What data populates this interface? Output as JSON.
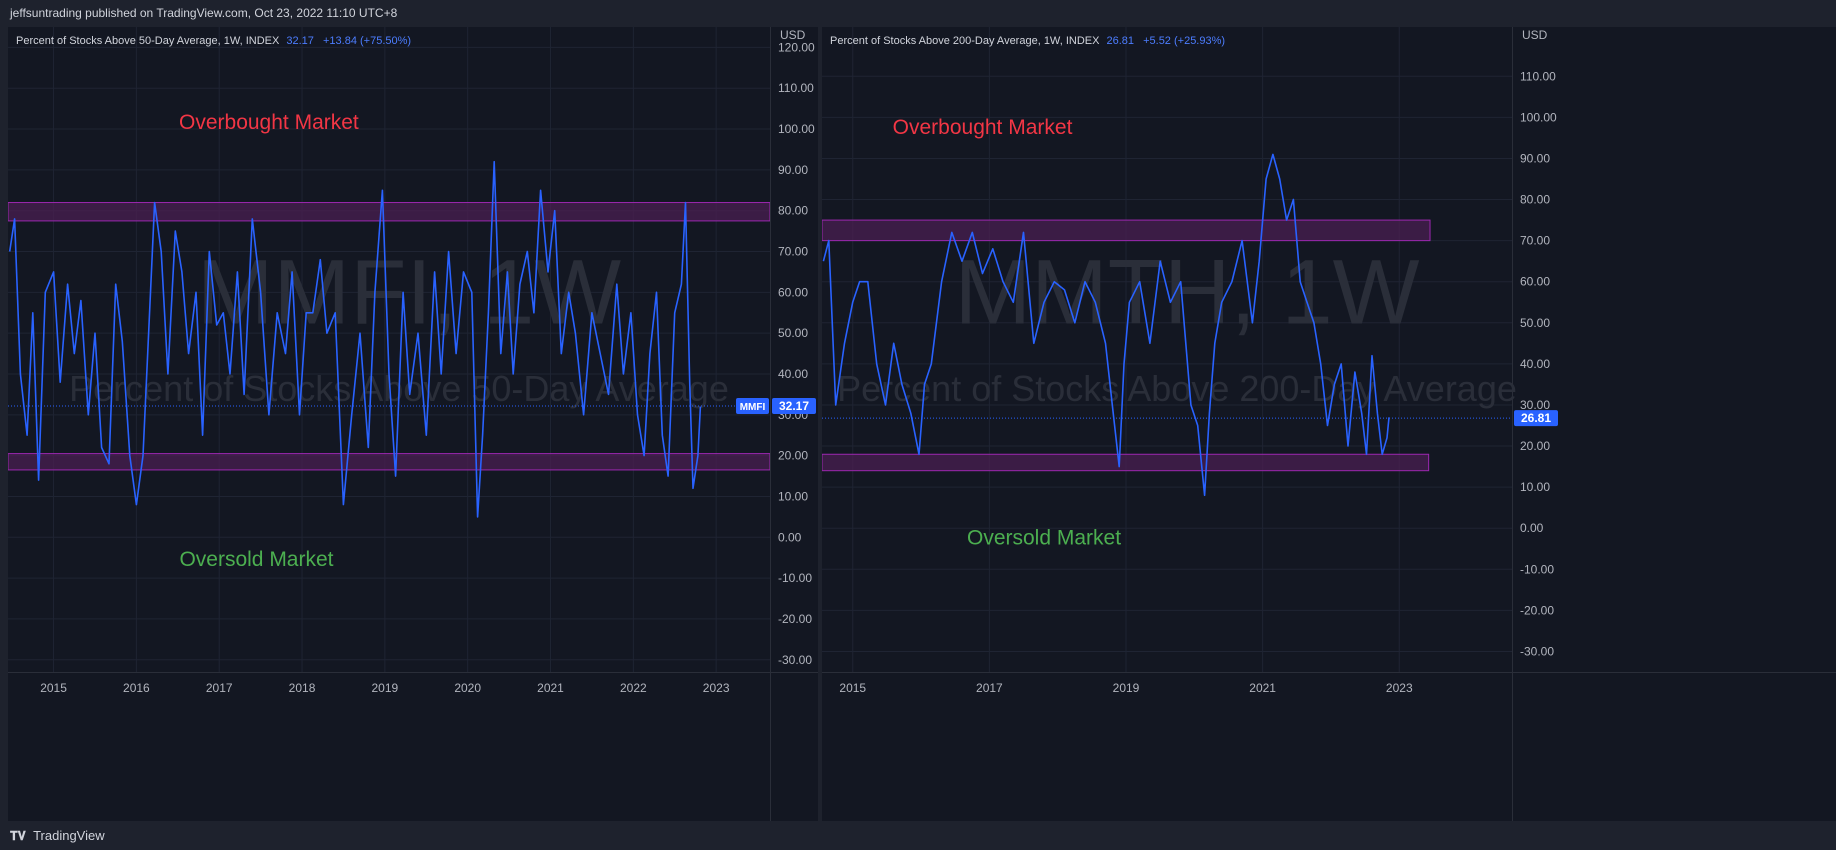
{
  "header": {
    "publisher": "jeffsuntrading published on TradingView.com, Oct 23, 2022 11:10 UTC+8"
  },
  "footer": {
    "brand": "TradingView"
  },
  "colors": {
    "line": "#2962ff",
    "zone_fill": "#4a1f52",
    "zone_border": "#9c27b0",
    "overbought": "#f23645",
    "oversold": "#4caf50",
    "price_tag": "#2962ff"
  },
  "chart_data": [
    {
      "type": "line",
      "title": "Percent of Stocks Above 50-Day Average, 1W, INDEX",
      "last_value": "32.17",
      "change": "+13.84 (+75.50%)",
      "symbol_tag": "MMFI",
      "currency": "USD",
      "watermark_symbol": "MMFI, 1W",
      "watermark_name": "Percent of Stocks Above 50-Day Average",
      "ylim": [
        -33,
        125
      ],
      "y_ticks": [
        "120.00",
        "110.00",
        "100.00",
        "90.00",
        "80.00",
        "70.00",
        "60.00",
        "50.00",
        "40.00",
        "30.00",
        "20.00",
        "10.00",
        "0.00",
        "-10.00",
        "-20.00",
        "-30.00"
      ],
      "x_ticks": [
        "2015",
        "2016",
        "2017",
        "2018",
        "2019",
        "2020",
        "2021",
        "2022",
        "2023"
      ],
      "xlim": [
        2014.45,
        2023.65
      ],
      "annotations": [
        {
          "text": "Overbought Market",
          "x": 2017.6,
          "y": 100
        },
        {
          "text": "Oversold Market",
          "x": 2017.45,
          "y": -7
        }
      ],
      "zones": [
        {
          "name": "overbought",
          "y_bottom": 77.5,
          "y_top": 82
        },
        {
          "name": "oversold",
          "y_bottom": 16.5,
          "y_top": 20.5
        }
      ],
      "x": [
        2014.47,
        2014.53,
        2014.6,
        2014.68,
        2014.75,
        2014.82,
        2014.9,
        2015.0,
        2015.08,
        2015.17,
        2015.25,
        2015.33,
        2015.42,
        2015.5,
        2015.58,
        2015.67,
        2015.75,
        2015.83,
        2015.92,
        2016.0,
        2016.08,
        2016.17,
        2016.22,
        2016.3,
        2016.38,
        2016.47,
        2016.55,
        2016.63,
        2016.72,
        2016.8,
        2016.88,
        2016.97,
        2017.05,
        2017.13,
        2017.22,
        2017.3,
        2017.4,
        2017.5,
        2017.6,
        2017.7,
        2017.8,
        2017.88,
        2017.97,
        2018.05,
        2018.13,
        2018.22,
        2018.3,
        2018.4,
        2018.5,
        2018.6,
        2018.7,
        2018.8,
        2018.88,
        2018.97,
        2019.05,
        2019.13,
        2019.22,
        2019.3,
        2019.4,
        2019.5,
        2019.6,
        2019.68,
        2019.77,
        2019.86,
        2019.95,
        2020.05,
        2020.12,
        2020.18,
        2020.25,
        2020.32,
        2020.4,
        2020.48,
        2020.55,
        2020.63,
        2020.72,
        2020.8,
        2020.88,
        2020.97,
        2021.05,
        2021.13,
        2021.22,
        2021.3,
        2021.4,
        2021.5,
        2021.6,
        2021.7,
        2021.8,
        2021.88,
        2021.97,
        2022.05,
        2022.13,
        2022.2,
        2022.28,
        2022.35,
        2022.42,
        2022.5,
        2022.58,
        2022.63,
        2022.68,
        2022.72,
        2022.78,
        2022.81
      ],
      "values": [
        70,
        78,
        40,
        25,
        55,
        14,
        60,
        65,
        38,
        62,
        45,
        58,
        30,
        50,
        22,
        18,
        62,
        48,
        20,
        8,
        20,
        60,
        82,
        70,
        40,
        75,
        65,
        45,
        60,
        25,
        70,
        52,
        55,
        40,
        65,
        35,
        78,
        60,
        30,
        55,
        45,
        65,
        30,
        55,
        55,
        68,
        50,
        55,
        8,
        30,
        50,
        22,
        60,
        85,
        40,
        15,
        60,
        35,
        50,
        25,
        65,
        40,
        70,
        45,
        65,
        60,
        5,
        25,
        55,
        92,
        45,
        65,
        40,
        62,
        70,
        55,
        85,
        65,
        80,
        45,
        60,
        50,
        30,
        55,
        45,
        35,
        62,
        40,
        55,
        30,
        20,
        45,
        60,
        25,
        15,
        55,
        62,
        82,
        38,
        12,
        20,
        32
      ]
    },
    {
      "type": "line",
      "title": "Percent of Stocks Above 200-Day Average, 1W, INDEX",
      "last_value": "26.81",
      "change": "+5.52 (+25.93%)",
      "currency": "USD",
      "watermark_symbol": "MMTH, 1W",
      "watermark_name": "Percent of Stocks Above 200-Day Average",
      "ylim": [
        -35,
        122
      ],
      "y_ticks": [
        "110.00",
        "100.00",
        "90.00",
        "80.00",
        "70.00",
        "60.00",
        "50.00",
        "40.00",
        "30.00",
        "20.00",
        "10.00",
        "0.00",
        "-10.00",
        "-20.00",
        "-30.00"
      ],
      "x_ticks": [
        "2015",
        "2017",
        "2019",
        "2021",
        "2023"
      ],
      "xlim": [
        2014.55,
        2024.65
      ],
      "annotations": [
        {
          "text": "Overbought Market",
          "x": 2016.9,
          "y": 96
        },
        {
          "text": "Oversold Market",
          "x": 2017.8,
          "y": -4
        }
      ],
      "zones": [
        {
          "name": "overbought",
          "y_bottom": 70,
          "y_top": 75,
          "x_end": 2023.45
        },
        {
          "name": "oversold",
          "y_bottom": 14,
          "y_top": 18,
          "x_end": 2023.43
        }
      ],
      "x": [
        2014.57,
        2014.65,
        2014.75,
        2014.88,
        2015.0,
        2015.1,
        2015.22,
        2015.35,
        2015.48,
        2015.6,
        2015.72,
        2015.85,
        2015.97,
        2016.05,
        2016.15,
        2016.3,
        2016.45,
        2016.6,
        2016.75,
        2016.9,
        2017.05,
        2017.2,
        2017.35,
        2017.5,
        2017.65,
        2017.8,
        2017.95,
        2018.1,
        2018.25,
        2018.4,
        2018.55,
        2018.7,
        2018.8,
        2018.9,
        2018.97,
        2019.05,
        2019.2,
        2019.35,
        2019.5,
        2019.65,
        2019.8,
        2019.95,
        2020.05,
        2020.15,
        2020.22,
        2020.3,
        2020.4,
        2020.55,
        2020.7,
        2020.85,
        2020.95,
        2021.05,
        2021.15,
        2021.25,
        2021.35,
        2021.45,
        2021.55,
        2021.65,
        2021.75,
        2021.85,
        2021.95,
        2022.05,
        2022.15,
        2022.25,
        2022.35,
        2022.45,
        2022.52,
        2022.6,
        2022.68,
        2022.75,
        2022.82,
        2022.85
      ],
      "values": [
        65,
        70,
        30,
        45,
        55,
        60,
        60,
        40,
        30,
        45,
        35,
        28,
        18,
        35,
        40,
        60,
        72,
        65,
        72,
        62,
        68,
        60,
        55,
        72,
        45,
        55,
        60,
        58,
        50,
        60,
        55,
        45,
        30,
        15,
        40,
        55,
        60,
        45,
        65,
        55,
        60,
        30,
        25,
        8,
        28,
        45,
        55,
        60,
        70,
        50,
        65,
        85,
        91,
        85,
        75,
        80,
        60,
        55,
        50,
        40,
        25,
        35,
        40,
        20,
        38,
        28,
        18,
        42,
        28,
        18,
        22,
        27
      ]
    }
  ]
}
